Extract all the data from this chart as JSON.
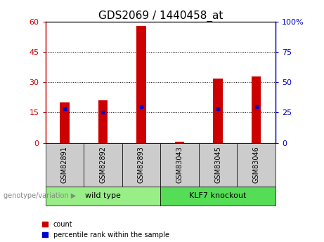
{
  "title": "GDS2069 / 1440458_at",
  "categories": [
    "GSM82891",
    "GSM82892",
    "GSM82893",
    "GSM83043",
    "GSM83045",
    "GSM83046"
  ],
  "count_values": [
    20,
    21,
    58,
    0.5,
    32,
    33
  ],
  "percentile_values": [
    28,
    25,
    30,
    0,
    28,
    30
  ],
  "left_ylim": [
    0,
    60
  ],
  "right_ylim": [
    0,
    100
  ],
  "left_yticks": [
    0,
    15,
    30,
    45,
    60
  ],
  "right_yticks": [
    0,
    25,
    50,
    75,
    100
  ],
  "left_yticklabels": [
    "0",
    "15",
    "30",
    "45",
    "60"
  ],
  "right_yticklabels": [
    "0",
    "25",
    "50",
    "75",
    "100%"
  ],
  "bar_color": "#cc0000",
  "dot_color": "#0000cc",
  "group1_label": "wild type",
  "group2_label": "KLF7 knockout",
  "group1_indices": [
    0,
    1,
    2
  ],
  "group2_indices": [
    3,
    4,
    5
  ],
  "group1_bg": "#99ee88",
  "group2_bg": "#55dd55",
  "label_text": "genotype/variation",
  "legend_count": "count",
  "legend_percentile": "percentile rank within the sample",
  "bar_width": 0.25,
  "tick_label_bg": "#cccccc",
  "title_fontsize": 11,
  "axis_fontsize": 8,
  "cat_fontsize": 7
}
